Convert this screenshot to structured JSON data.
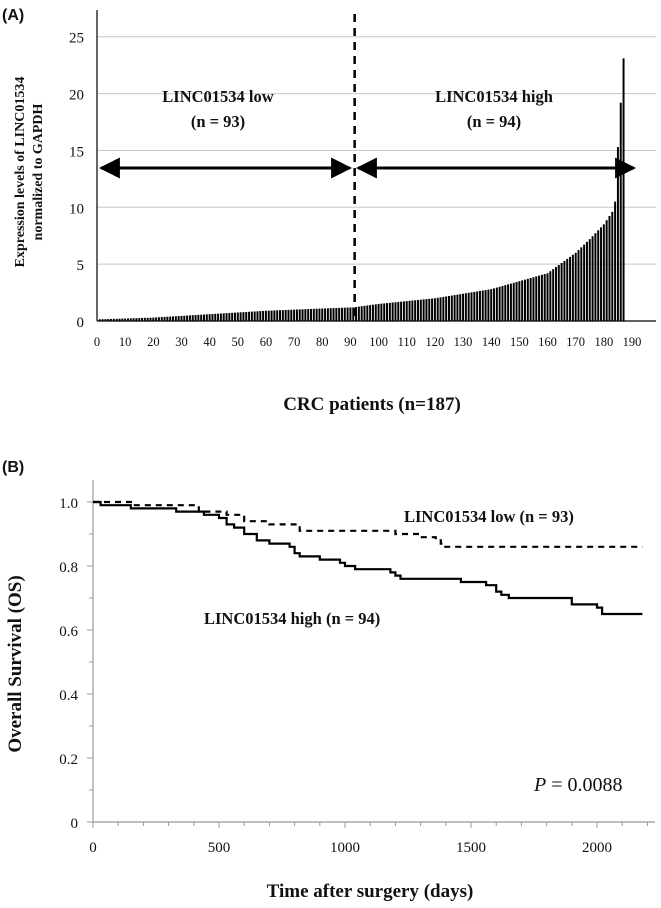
{
  "chart_data": [
    {
      "panel": "A",
      "panel_label": "(A)",
      "type": "bar",
      "title": "",
      "xlabel": "CRC patients (n=187)",
      "ylabel_lines": [
        "Expression levels of LINC01534",
        "normalized to GAPDH"
      ],
      "x_ticks": [
        "0",
        "10",
        "20",
        "30",
        "40",
        "50",
        "60",
        "70",
        "80",
        "90",
        "100",
        "110",
        "120",
        "130",
        "140",
        "150",
        "160",
        "170",
        "180",
        "190"
      ],
      "y_ticks": [
        "0",
        "5",
        "10",
        "15",
        "20",
        "25"
      ],
      "xlim": [
        0,
        190
      ],
      "ylim": [
        0,
        27
      ],
      "n_bars": 187,
      "cutoff_patient": 91,
      "value_anchors": [
        [
          1,
          0.15
        ],
        [
          20,
          0.3
        ],
        [
          40,
          0.6
        ],
        [
          60,
          0.9
        ],
        [
          80,
          1.1
        ],
        [
          91,
          1.2
        ],
        [
          100,
          1.5
        ],
        [
          120,
          2.0
        ],
        [
          140,
          2.8
        ],
        [
          160,
          4.2
        ],
        [
          170,
          6.0
        ],
        [
          175,
          7.2
        ],
        [
          180,
          8.5
        ],
        [
          183,
          9.6
        ],
        [
          184,
          10.5
        ],
        [
          185,
          15.3
        ],
        [
          186,
          19.2
        ],
        [
          187,
          23.1
        ]
      ],
      "low_group": {
        "line1": "LINC01534 low",
        "line2": "(n = 93)"
      },
      "high_group": {
        "line1": "LINC01534 high",
        "line2": "(n = 94)"
      }
    },
    {
      "panel": "B",
      "panel_label": "(B)",
      "type": "line",
      "title": "",
      "xlabel": "Time after surgery (days)",
      "ylabel": "Overall Survival (OS)",
      "x_ticks": [
        "0",
        "500",
        "1000",
        "1500",
        "2000"
      ],
      "y_ticks": [
        "0",
        "0.2",
        "0.4",
        "0.6",
        "0.8",
        "1.0"
      ],
      "xlim": [
        0,
        2230
      ],
      "ylim": [
        0,
        1.05
      ],
      "series": [
        {
          "name": "LINC01534 low (n = 93)",
          "style": "dashed",
          "points": [
            [
              0,
              1.0
            ],
            [
              120,
              1.0
            ],
            [
              160,
              0.99
            ],
            [
              300,
              0.99
            ],
            [
              420,
              0.97
            ],
            [
              530,
              0.96
            ],
            [
              600,
              0.94
            ],
            [
              700,
              0.93
            ],
            [
              820,
              0.91
            ],
            [
              1150,
              0.91
            ],
            [
              1200,
              0.9
            ],
            [
              1300,
              0.89
            ],
            [
              1360,
              0.88
            ],
            [
              1380,
              0.87
            ],
            [
              1390,
              0.86
            ],
            [
              2180,
              0.86
            ]
          ]
        },
        {
          "name": "LINC01534 high (n = 94)",
          "style": "solid",
          "points": [
            [
              0,
              1.0
            ],
            [
              30,
              0.99
            ],
            [
              120,
              0.99
            ],
            [
              150,
              0.98
            ],
            [
              300,
              0.98
            ],
            [
              330,
              0.97
            ],
            [
              440,
              0.96
            ],
            [
              500,
              0.95
            ],
            [
              530,
              0.93
            ],
            [
              560,
              0.92
            ],
            [
              600,
              0.9
            ],
            [
              650,
              0.88
            ],
            [
              700,
              0.87
            ],
            [
              780,
              0.86
            ],
            [
              800,
              0.84
            ],
            [
              820,
              0.83
            ],
            [
              900,
              0.82
            ],
            [
              980,
              0.81
            ],
            [
              1000,
              0.8
            ],
            [
              1040,
              0.79
            ],
            [
              1180,
              0.78
            ],
            [
              1200,
              0.77
            ],
            [
              1220,
              0.76
            ],
            [
              1420,
              0.76
            ],
            [
              1460,
              0.75
            ],
            [
              1560,
              0.74
            ],
            [
              1600,
              0.72
            ],
            [
              1620,
              0.71
            ],
            [
              1650,
              0.7
            ],
            [
              1880,
              0.7
            ],
            [
              1900,
              0.68
            ],
            [
              2000,
              0.67
            ],
            [
              2020,
              0.65
            ],
            [
              2180,
              0.65
            ]
          ]
        }
      ],
      "annotations": {
        "low": "LINC01534 low (n = 93)",
        "high": "LINC01534 high (n = 94)"
      },
      "p_label": "P",
      "p_value_text": " = 0.0088"
    }
  ]
}
